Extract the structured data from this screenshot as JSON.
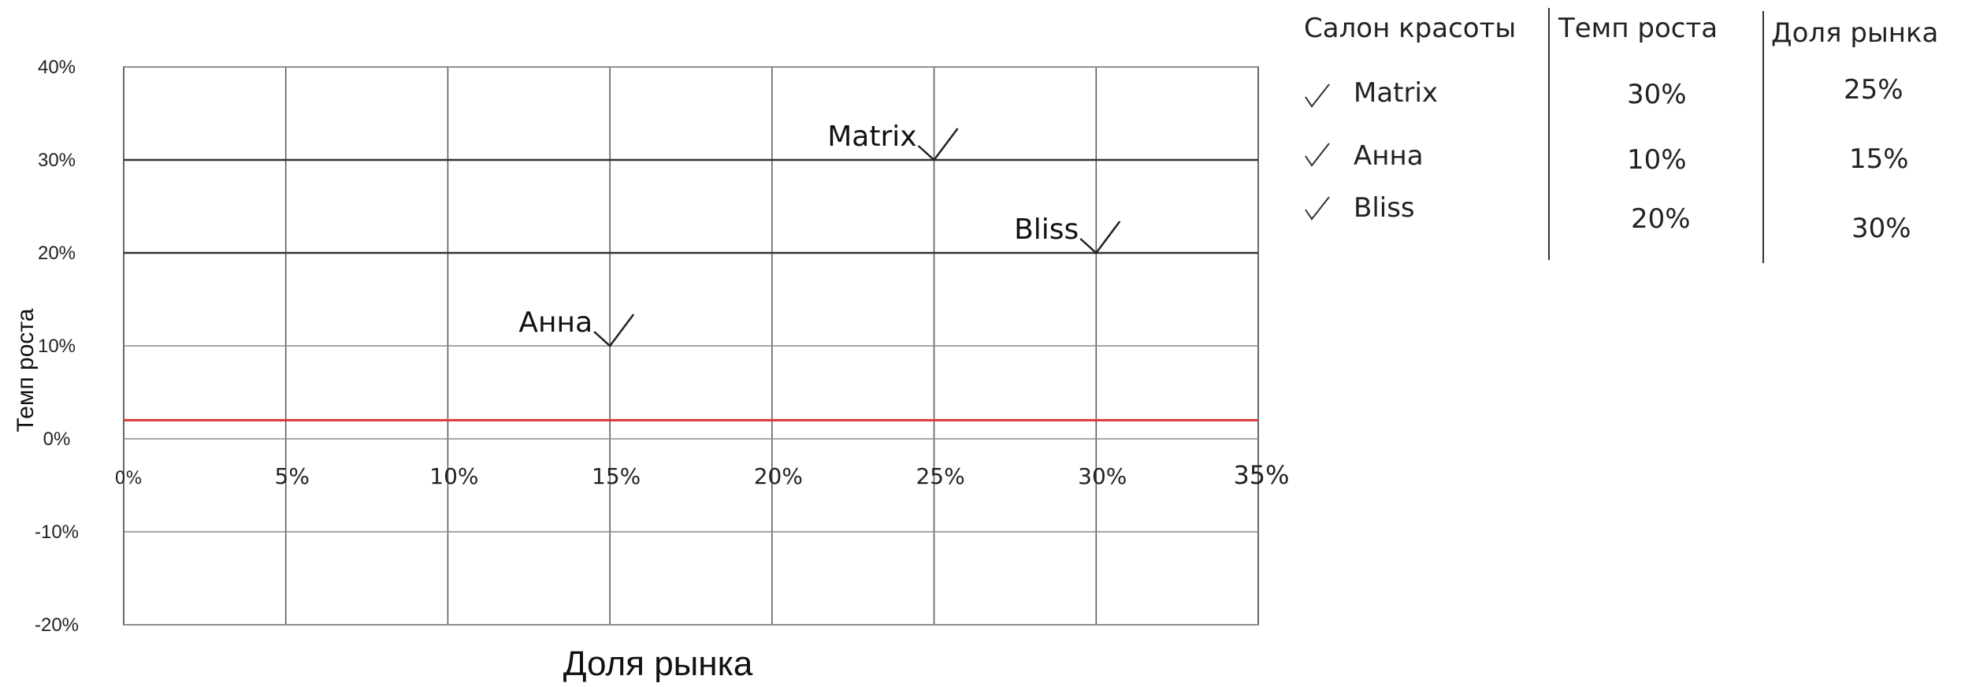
{
  "chart_data": {
    "type": "scatter",
    "title": "",
    "xlabel": "Доля рынка",
    "ylabel": "Темп роста",
    "xlim": [
      0,
      35
    ],
    "ylim": [
      -20,
      40
    ],
    "x_ticks": [
      "0%",
      "5%",
      "10%",
      "15%",
      "20%",
      "25%",
      "30%",
      "35%"
    ],
    "y_ticks": [
      "40%",
      "30%",
      "20%",
      "10%",
      "0%",
      "-10%",
      "-20%"
    ],
    "grid": true,
    "reference_line": {
      "y": 2,
      "color": "#d63a3a"
    },
    "points": [
      {
        "label": "Matrix",
        "x": 25,
        "y": 30
      },
      {
        "label": "Анна",
        "x": 15,
        "y": 10
      },
      {
        "label": "Bliss",
        "x": 30,
        "y": 20
      }
    ]
  },
  "table": {
    "headers": [
      "Салон красоты",
      "Темп роста",
      "Доля рынка"
    ],
    "rows": [
      {
        "name": "Matrix",
        "growth": "30%",
        "share": "25%"
      },
      {
        "name": "Анна",
        "growth": "10%",
        "share": "15%"
      },
      {
        "name": "Bliss",
        "growth": "20%",
        "share": "30%"
      }
    ]
  }
}
